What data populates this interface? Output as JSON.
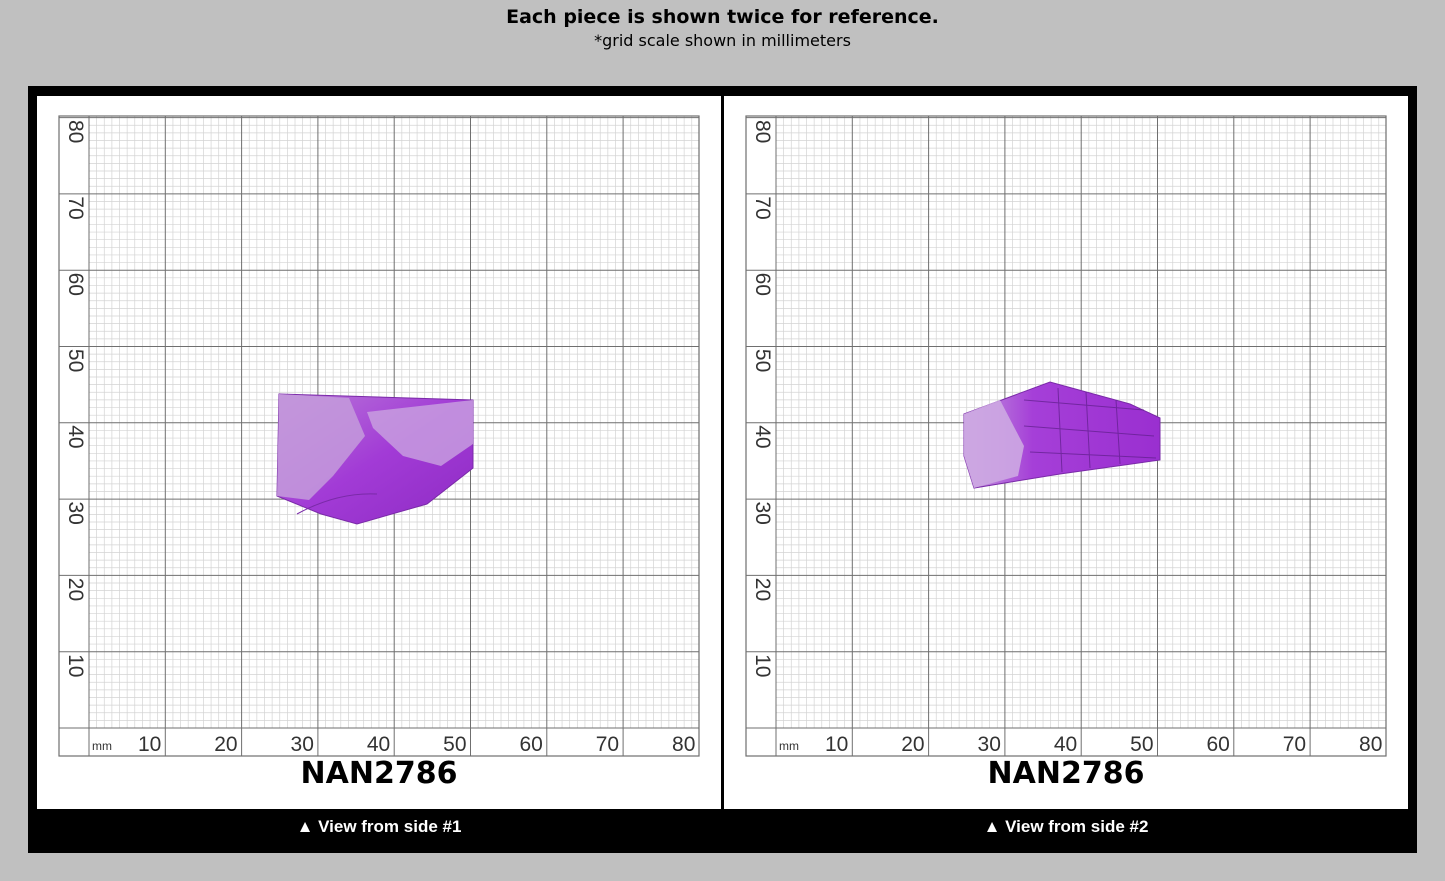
{
  "header": {
    "title": "Each piece is shown twice for reference.",
    "subtitle": "*grid scale shown in millimeters"
  },
  "scale": {
    "unit_label": "mm",
    "x_ticks": [
      "10",
      "20",
      "30",
      "40",
      "50",
      "60",
      "70",
      "80"
    ],
    "y_ticks": [
      "80",
      "70",
      "60",
      "50",
      "40",
      "30",
      "20",
      "10"
    ]
  },
  "colors": {
    "background": "#c0c0c0",
    "frame": "#000000",
    "grid_major": "#6f6f6f",
    "grid_minor": "#d3d3d3",
    "stone": "#a43fd6"
  },
  "panels": [
    {
      "code": "NAN2786",
      "caption": "▲ View from side #1"
    },
    {
      "code": "NAN2786",
      "caption": "▲ View from side #2"
    }
  ]
}
